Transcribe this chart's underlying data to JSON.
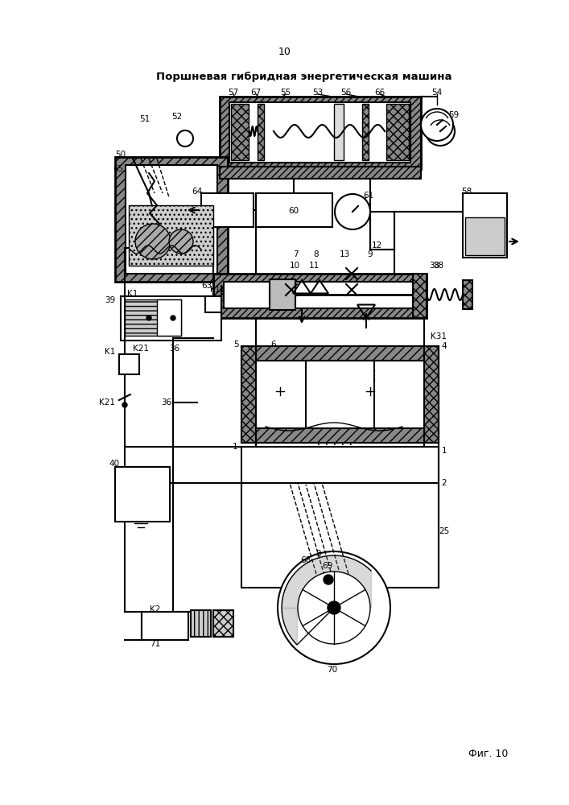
{
  "title": "Поршневая гибридная энергетическая машина",
  "page_number": "10",
  "fig_label": "Фиг. 10",
  "bg_color": "#ffffff",
  "line_color": "#000000"
}
